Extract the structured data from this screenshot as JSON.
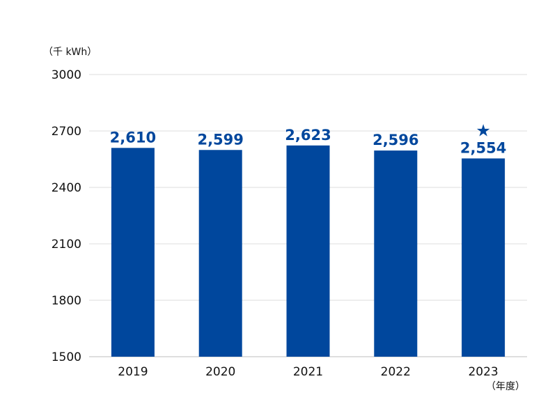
{
  "chart_data": {
    "type": "bar",
    "y_unit_label": "（千 kWh）",
    "x_unit_label": "（年度）",
    "categories": [
      "2019",
      "2020",
      "2021",
      "2022",
      "2023"
    ],
    "values": [
      2610,
      2599,
      2623,
      2596,
      2554
    ],
    "data_labels": [
      "2,610",
      "2,599",
      "2,623",
      "2,596",
      "2,554"
    ],
    "ylim": [
      1500,
      3000
    ],
    "yticks": [
      1500,
      1800,
      2100,
      2400,
      2700,
      3000
    ],
    "grid": true,
    "bar_color": "#00479d",
    "label_color": "#00479d",
    "annotations": [
      {
        "category": "2023",
        "symbol": "★",
        "icon": "star-icon"
      }
    ]
  }
}
